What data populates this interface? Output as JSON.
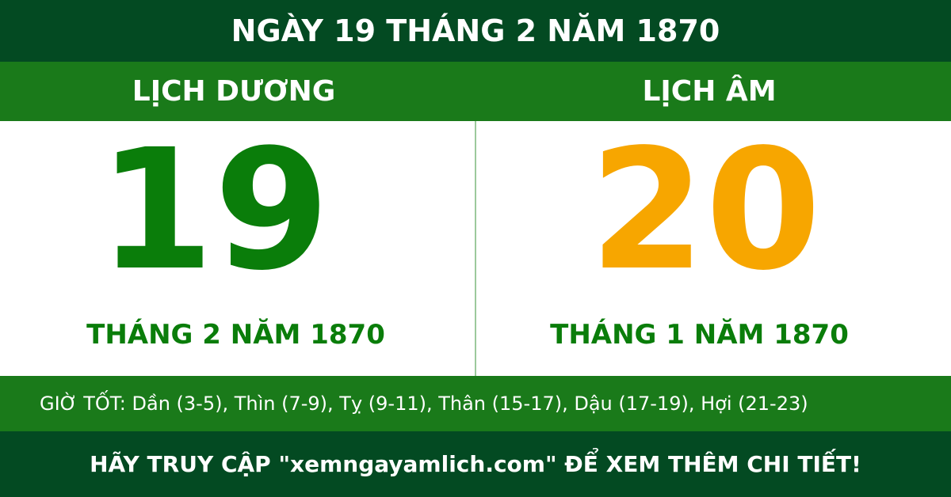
{
  "header": {
    "title": "NGÀY 19 THÁNG 2 NĂM 1870"
  },
  "solar": {
    "label": "LỊCH DƯƠNG",
    "day": "19",
    "month_year": "THÁNG 2 NĂM 1870"
  },
  "lunar": {
    "label": "LỊCH ÂM",
    "day": "20",
    "month_year": "THÁNG 1 NĂM 1870"
  },
  "good_hours": "GIỜ TỐT: Dần (3-5), Thìn (7-9), Tỵ (9-11), Thân (15-17), Dậu (17-19), Hợi (21-23)",
  "footer": "HÃY TRUY CẬP \"xemngayamlich.com\" ĐỂ XEM THÊM CHI TIẾT!"
}
